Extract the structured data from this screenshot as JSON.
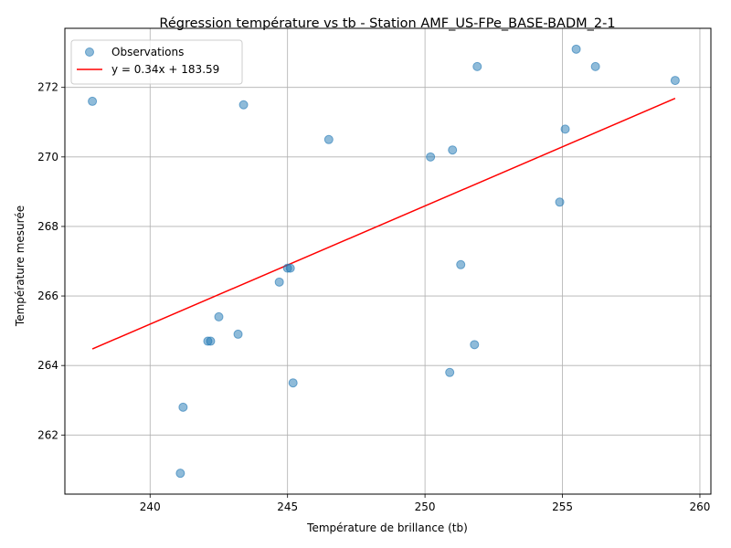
{
  "chart_data": {
    "type": "scatter",
    "title": "Régression température vs tb - Station AMF_US-FPe_BASE-BADM_2-1",
    "xlabel": "Température de brillance (tb)",
    "ylabel": "Température mesurée",
    "xlim": [
      236.9,
      260.4
    ],
    "ylim": [
      260.3,
      273.7
    ],
    "xticks": [
      240,
      245,
      250,
      255,
      260
    ],
    "yticks": [
      262,
      264,
      266,
      268,
      270,
      272
    ],
    "grid": true,
    "legend": "top-left",
    "series": [
      {
        "name": "Observations",
        "kind": "scatter",
        "color": "#1f77b4",
        "points": [
          {
            "x": 237.9,
            "y": 271.6
          },
          {
            "x": 241.1,
            "y": 260.9
          },
          {
            "x": 241.2,
            "y": 262.8
          },
          {
            "x": 242.1,
            "y": 264.7
          },
          {
            "x": 242.2,
            "y": 264.7
          },
          {
            "x": 242.5,
            "y": 265.4
          },
          {
            "x": 243.2,
            "y": 264.9
          },
          {
            "x": 243.4,
            "y": 271.5
          },
          {
            "x": 244.7,
            "y": 266.4
          },
          {
            "x": 245.0,
            "y": 266.8
          },
          {
            "x": 245.1,
            "y": 266.8
          },
          {
            "x": 245.2,
            "y": 263.5
          },
          {
            "x": 246.5,
            "y": 270.5
          },
          {
            "x": 250.2,
            "y": 270.0
          },
          {
            "x": 250.9,
            "y": 263.8
          },
          {
            "x": 251.0,
            "y": 270.2
          },
          {
            "x": 251.3,
            "y": 266.9
          },
          {
            "x": 251.8,
            "y": 264.6
          },
          {
            "x": 251.9,
            "y": 272.6
          },
          {
            "x": 254.9,
            "y": 268.7
          },
          {
            "x": 255.1,
            "y": 270.8
          },
          {
            "x": 255.5,
            "y": 273.1
          },
          {
            "x": 256.2,
            "y": 272.6
          },
          {
            "x": 259.1,
            "y": 272.2
          }
        ]
      },
      {
        "name": "y = 0.34x + 183.59",
        "kind": "line",
        "color": "#ff0000",
        "slope": 0.34,
        "intercept": 183.59,
        "x_range": [
          237.9,
          259.1
        ]
      }
    ]
  }
}
